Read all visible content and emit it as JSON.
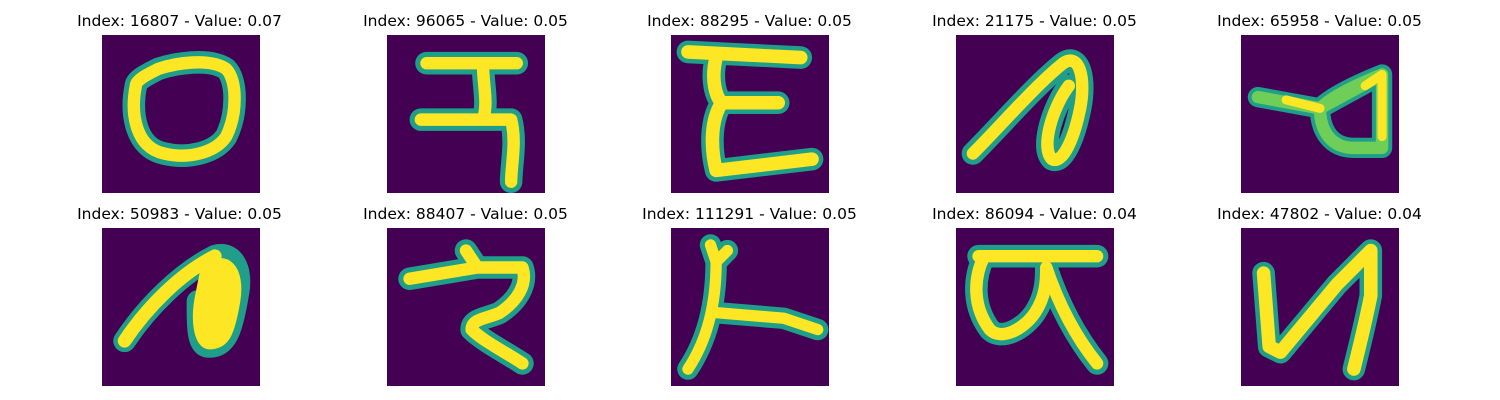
{
  "panels": [
    {
      "title": "Index: 16807 - Value: 0.07",
      "glyph": "loop-oval",
      "index": 16807,
      "value": 0.07
    },
    {
      "title": "Index: 96065 - Value: 0.05",
      "glyph": "devanagari-ra-like",
      "index": 96065,
      "value": 0.05
    },
    {
      "title": "Index: 88295 - Value: 0.05",
      "glyph": "epsilon-like",
      "index": 88295,
      "value": 0.05
    },
    {
      "title": "Index: 21175 - Value: 0.05",
      "glyph": "loop-stroke",
      "index": 21175,
      "value": 0.05
    },
    {
      "title": "Index: 65958 - Value: 0.05",
      "glyph": "triangle-loop",
      "index": 65958,
      "value": 0.05
    },
    {
      "title": "Index: 50983 - Value: 0.05",
      "glyph": "filled-loop",
      "index": 50983,
      "value": 0.05
    },
    {
      "title": "Index: 88407 - Value: 0.05",
      "glyph": "devanagari-ra-like",
      "index": 88407,
      "value": 0.05
    },
    {
      "title": "Index: 111291 - Value: 0.05",
      "glyph": "corner-stroke",
      "index": 111291,
      "value": 0.05
    },
    {
      "title": "Index: 86094 - Value: 0.04",
      "glyph": "devanagari-ka-like",
      "index": 86094,
      "value": 0.04
    },
    {
      "title": "Index: 47802 - Value: 0.04",
      "glyph": "n-like",
      "index": 47802,
      "value": 0.04
    }
  ],
  "colors": {
    "background": "#440154",
    "stroke_edge": "#1f9e89",
    "stroke_mid": "#6ece58",
    "stroke_core": "#fde725"
  }
}
